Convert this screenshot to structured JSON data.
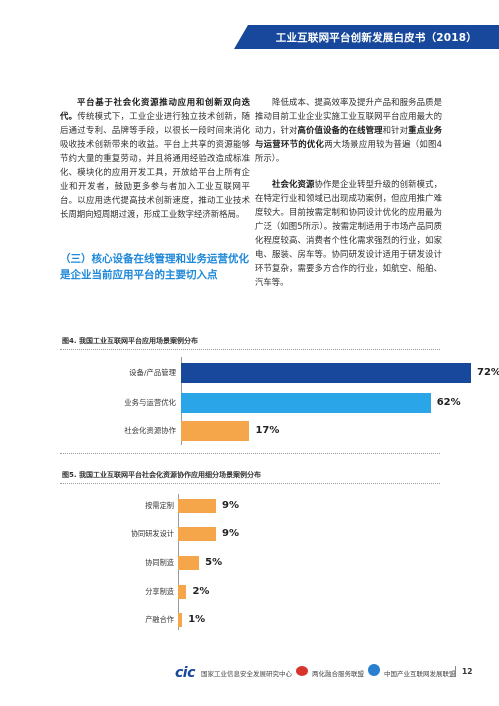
{
  "header": {
    "title": "工业互联网平台创新发展白皮书（2018）"
  },
  "left_column": {
    "paragraph1_lead": "平台基于社会化资源推动应用和创新双向迭代。",
    "paragraph1_body": "传统模式下，工业企业进行独立技术创新，随后通过专利、品牌等手段，以很长一段时间来消化吸收技术创新带来的收益。平台上共享的资源能够节约大量的重复劳动，并且将通用经验改造成标准化、模块化的应用开发工具，开放给平台上所有企业和开发者，鼓励更多参与者加入工业互联网平台。以应用迭代提高技术创新速度，推动工业技术长周期向短周期过渡，形成工业数字经济新格局。",
    "section_heading": "（三）核心设备在线管理和业务运营优化是企业当前应用平台的主要切入点"
  },
  "right_column": {
    "p1_a": "降低成本、提高效率及提升产品和服务品质是推动目前工业企业实施工业互联网平台应用最大的动力，针对",
    "p1_b1": "高价值设备的在线管理",
    "p1_c": "和针对",
    "p1_b2": "重点业务与运营环节的优化",
    "p1_d": "两大场景应用较为普遍（如图4所示）。",
    "p2_bold": "社会化资源",
    "p2_body": "协作是企业转型升级的创新模式，在特定行业和领域已出现成功案例，但应用推广难度较大。目前按需定制和协同设计优化的应用最为广泛（如图5所示）。按需定制适用于市场产品同质化程度较高、消费者个性化需求强烈的行业，如家电、服装、房车等。协同研发设计适用于研发设计环节复杂，需要多方合作的行业，如航空、船舶、汽车等。"
  },
  "figure4": {
    "title": "图4. 我国工业互联网平台应用场景案例分布",
    "colors": [
      "#17489b",
      "#2aa6e8",
      "#f5a54a"
    ]
  },
  "figure5": {
    "title": "图5. 我国工业互联网平台社会化资源协作应用细分场景案例分布",
    "color": "#f5a54a"
  },
  "chart_data": [
    {
      "type": "bar",
      "orientation": "horizontal",
      "title": "图4. 我国工业互联网平台应用场景案例分布",
      "categories": [
        "设备/产品管理",
        "业务与运营优化",
        "社会化资源协作"
      ],
      "values": [
        72,
        62,
        17
      ],
      "value_labels": [
        "72%",
        "62%",
        "17%"
      ],
      "xlim": [
        0,
        72
      ]
    },
    {
      "type": "bar",
      "orientation": "horizontal",
      "title": "图5. 我国工业互联网平台社会化资源协作应用细分场景案例分布",
      "categories": [
        "按需定制",
        "协同研发设计",
        "协同制造",
        "分享制造",
        "产融合作"
      ],
      "values": [
        9,
        9,
        5,
        2,
        1
      ],
      "value_labels": [
        "9%",
        "9%",
        "5%",
        "2%",
        "1%"
      ],
      "xlim": [
        0,
        9
      ]
    }
  ],
  "footer": {
    "logo_text": "cic",
    "org1": "国家工业信息安全发展研究中心",
    "org2": "两化融合服务联盟",
    "org3": "中国产业互联网发展联盟",
    "page_number": "12"
  }
}
